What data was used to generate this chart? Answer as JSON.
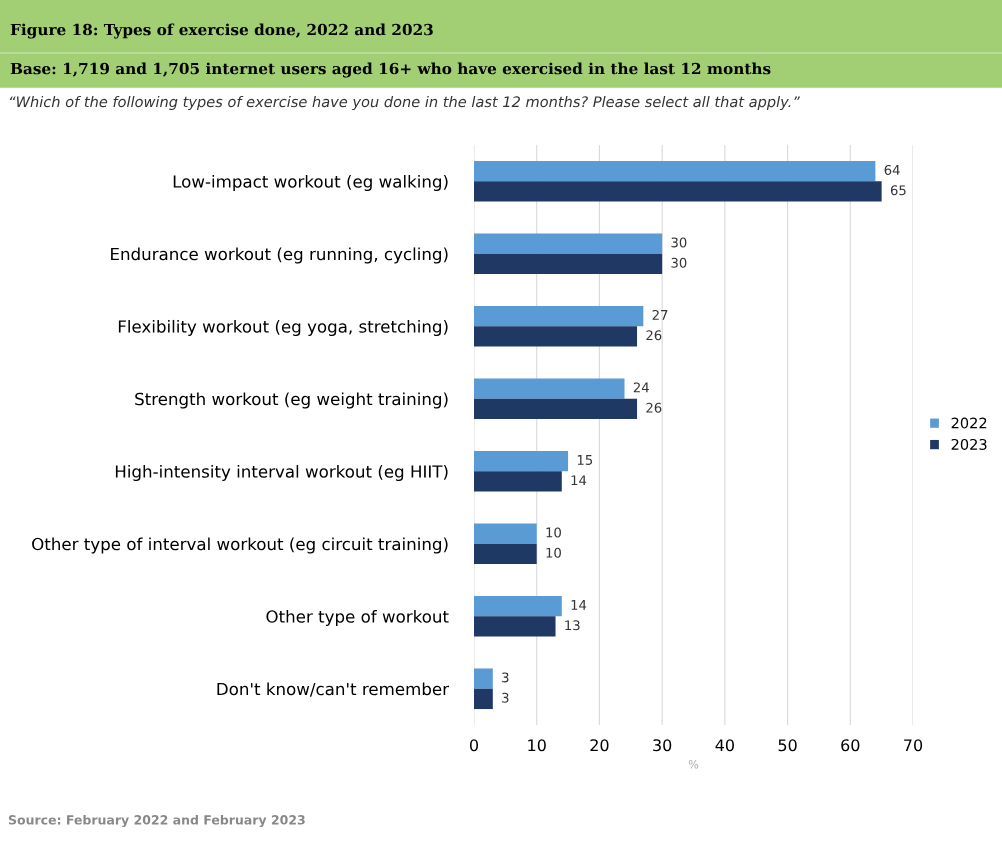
{
  "chart_data": {
    "type": "bar",
    "orientation": "horizontal",
    "title": "Figure 18: Types of exercise done, 2022 and 2023",
    "subtitle": "Base: 1,719 and 1,705 internet users aged 16+ who have exercised in the last 12 months",
    "xlabel": "%",
    "categories": [
      "Low-impact workout (eg walking)",
      "Endurance workout (eg running, cycling)",
      "Flexibility workout (eg yoga, stretching)",
      "Strength workout (eg weight training)",
      "High-intensity interval workout (eg HIIT)",
      "Other type of interval workout (eg circuit training)",
      "Other type of workout",
      "Don't know/can't remember"
    ],
    "series": [
      {
        "name": "2022",
        "color": "#5b9bd5",
        "values": [
          64,
          30,
          27,
          24,
          15,
          10,
          14,
          3
        ]
      },
      {
        "name": "2023",
        "color": "#1f3864",
        "values": [
          65,
          30,
          26,
          26,
          14,
          10,
          13,
          3
        ]
      }
    ],
    "xlim": [
      0,
      70
    ],
    "xticks": [
      0,
      10,
      20,
      30,
      40,
      50,
      60,
      70
    ],
    "grid": "x",
    "legend": "right",
    "data_labels": true,
    "annotations": [
      "“Which of the following types of exercise have you done in the last 12 months? Please select all that apply.”",
      "Source: February 2022 and February 2023"
    ]
  }
}
